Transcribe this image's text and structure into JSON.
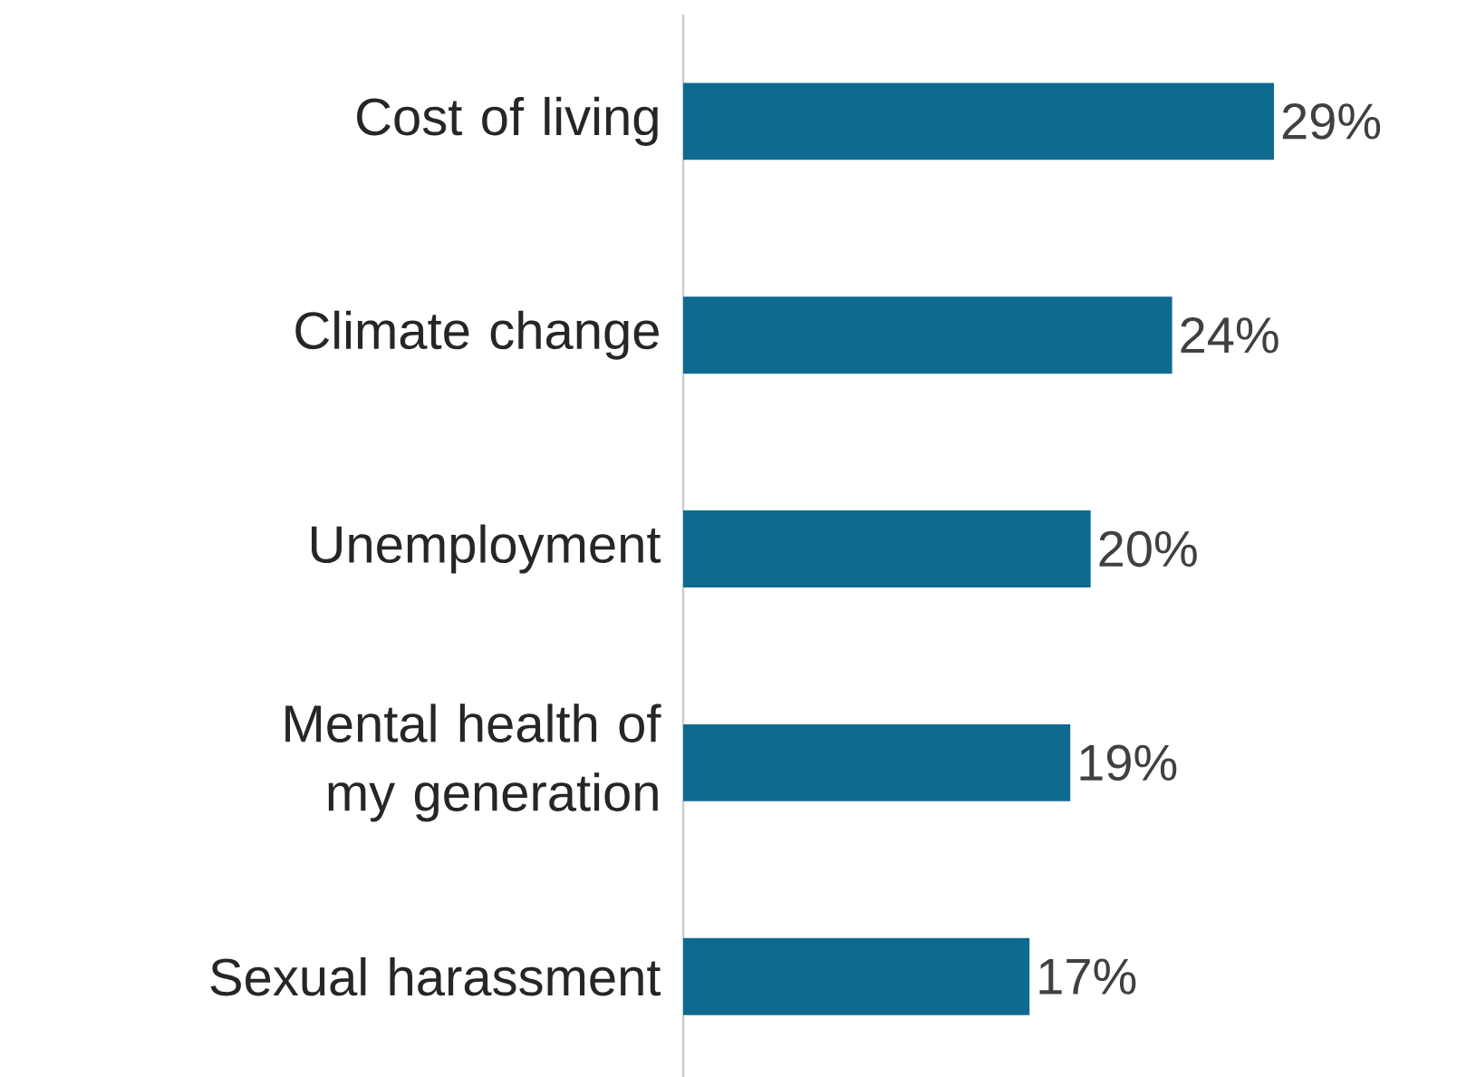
{
  "chart_data": {
    "type": "bar",
    "orientation": "horizontal",
    "categories": [
      "Cost of living",
      "Climate change",
      "Unemployment",
      "Mental health of my generation",
      "Sexual harassment"
    ],
    "values": [
      29,
      24,
      20,
      19,
      17
    ],
    "value_labels": [
      "29%",
      "24%",
      "20%",
      "19%",
      "17%"
    ],
    "color": "#0e6a8f"
  }
}
